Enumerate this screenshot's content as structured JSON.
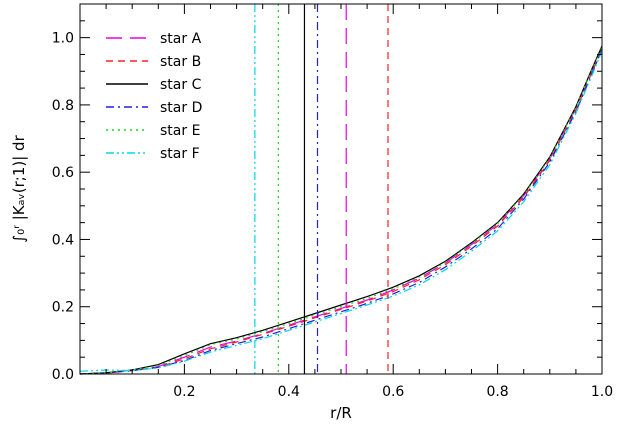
{
  "chart_data": {
    "type": "line",
    "xlabel": "r/R",
    "ylabel": "∫₀ʳ |Kₐᵥ(r;1)| dr",
    "xlim": [
      0.0,
      1.0
    ],
    "ylim": [
      0.0,
      1.1
    ],
    "x_ticks": [
      0.2,
      0.4,
      0.6,
      0.8,
      1.0
    ],
    "x_tick_labels": [
      "0.2",
      "0.4",
      "0.6",
      "0.8",
      "1.0"
    ],
    "y_ticks": [
      0.0,
      0.2,
      0.4,
      0.6,
      0.8,
      1.0
    ],
    "y_tick_labels": [
      "0.0",
      "0.2",
      "0.4",
      "0.6",
      "0.8",
      "1.0"
    ],
    "grid": false,
    "legend_position": "top-left",
    "x": [
      0.0,
      0.05,
      0.1,
      0.15,
      0.2,
      0.25,
      0.3,
      0.35,
      0.4,
      0.45,
      0.5,
      0.55,
      0.6,
      0.65,
      0.7,
      0.75,
      0.8,
      0.85,
      0.9,
      0.95,
      0.98,
      1.0
    ],
    "series": [
      {
        "name": "star A",
        "color": "#e800e8",
        "dash": "long-dash",
        "vline": 0.51,
        "values": [
          0.0,
          0.003,
          0.01,
          0.022,
          0.05,
          0.08,
          0.098,
          0.12,
          0.145,
          0.17,
          0.195,
          0.22,
          0.25,
          0.285,
          0.33,
          0.385,
          0.445,
          0.53,
          0.64,
          0.79,
          0.9,
          0.97
        ]
      },
      {
        "name": "star B",
        "color": "#ff2020",
        "dash": "dashed",
        "vline": 0.59,
        "values": [
          0.0,
          0.003,
          0.01,
          0.02,
          0.045,
          0.075,
          0.095,
          0.118,
          0.142,
          0.167,
          0.192,
          0.217,
          0.245,
          0.28,
          0.325,
          0.38,
          0.44,
          0.525,
          0.635,
          0.785,
          0.895,
          0.965
        ]
      },
      {
        "name": "star C",
        "color": "#000000",
        "dash": "solid",
        "vline": 0.43,
        "values": [
          0.0,
          0.004,
          0.012,
          0.028,
          0.06,
          0.09,
          0.108,
          0.13,
          0.155,
          0.18,
          0.205,
          0.23,
          0.258,
          0.292,
          0.335,
          0.39,
          0.45,
          0.535,
          0.645,
          0.795,
          0.905,
          0.975
        ]
      },
      {
        "name": "star D",
        "color": "#2020e0",
        "dash": "dash-dot",
        "vline": 0.455,
        "values": [
          0.0,
          0.003,
          0.01,
          0.02,
          0.04,
          0.07,
          0.09,
          0.11,
          0.135,
          0.16,
          0.185,
          0.21,
          0.238,
          0.272,
          0.318,
          0.372,
          0.432,
          0.52,
          0.63,
          0.78,
          0.89,
          0.965
        ]
      },
      {
        "name": "star E",
        "color": "#20d020",
        "dash": "dotted",
        "vline": 0.38,
        "values": [
          0.0,
          0.003,
          0.012,
          0.025,
          0.055,
          0.087,
          0.104,
          0.126,
          0.15,
          0.175,
          0.2,
          0.225,
          0.253,
          0.288,
          0.332,
          0.387,
          0.447,
          0.532,
          0.642,
          0.792,
          0.902,
          0.972
        ]
      },
      {
        "name": "star F",
        "color": "#00d8e8",
        "dash": "dash-dot-dot",
        "vline": 0.335,
        "values": [
          0.008,
          0.012,
          0.01,
          0.018,
          0.038,
          0.065,
          0.085,
          0.105,
          0.13,
          0.155,
          0.18,
          0.205,
          0.232,
          0.265,
          0.31,
          0.365,
          0.425,
          0.512,
          0.622,
          0.775,
          0.885,
          0.96
        ]
      }
    ]
  }
}
